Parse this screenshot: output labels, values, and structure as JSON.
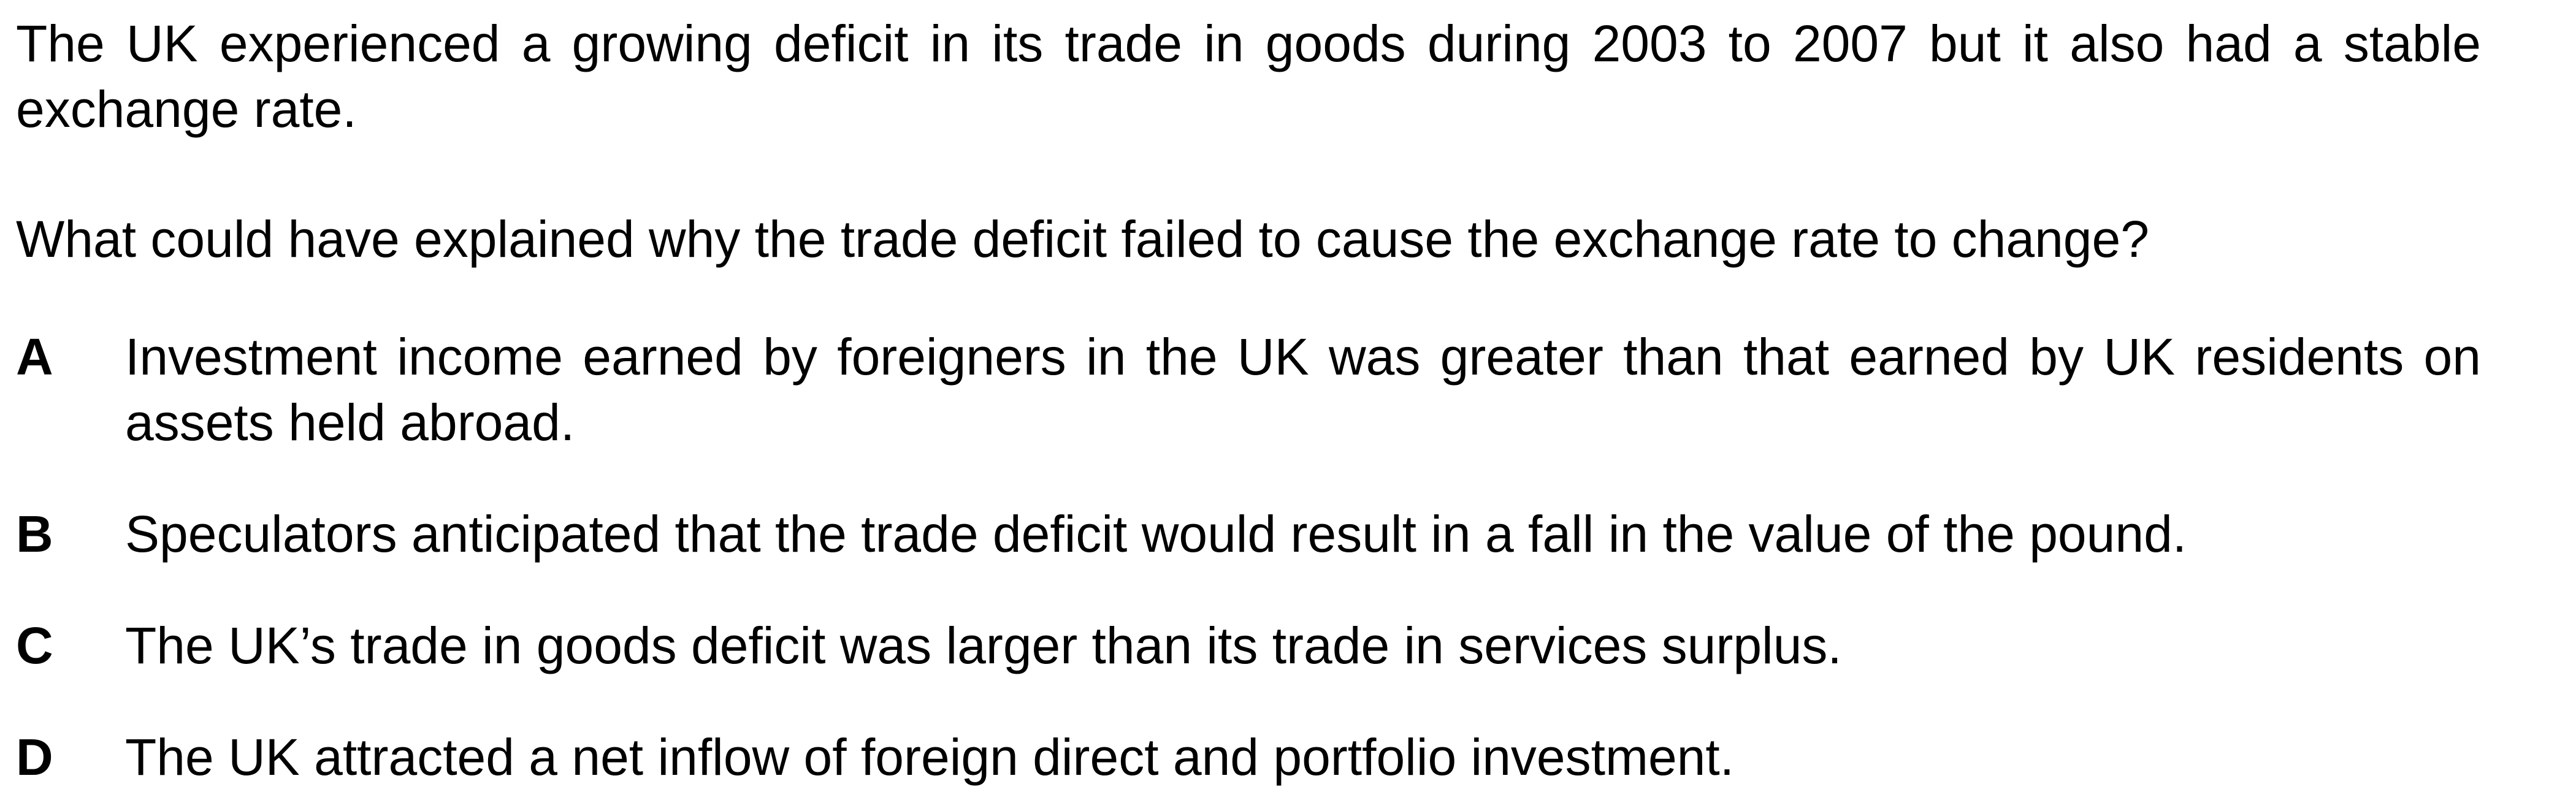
{
  "question": {
    "stem_context": "The UK experienced a growing deficit in its trade in goods during 2003 to 2007 but it also had a stable exchange rate.",
    "stem_question": "What could have explained why the trade deficit failed to cause the exchange rate to change?"
  },
  "options": [
    {
      "letter": "A",
      "text": "Investment income earned by foreigners in the UK was greater than that earned by UK residents on assets held abroad."
    },
    {
      "letter": "B",
      "text": "Speculators anticipated that the trade deficit would result in a fall in the value of the pound."
    },
    {
      "letter": "C",
      "text": "The UK’s trade in goods deficit was larger than its trade in services surplus."
    },
    {
      "letter": "D",
      "text": "The UK attracted a net inflow of foreign direct and portfolio investment."
    }
  ]
}
